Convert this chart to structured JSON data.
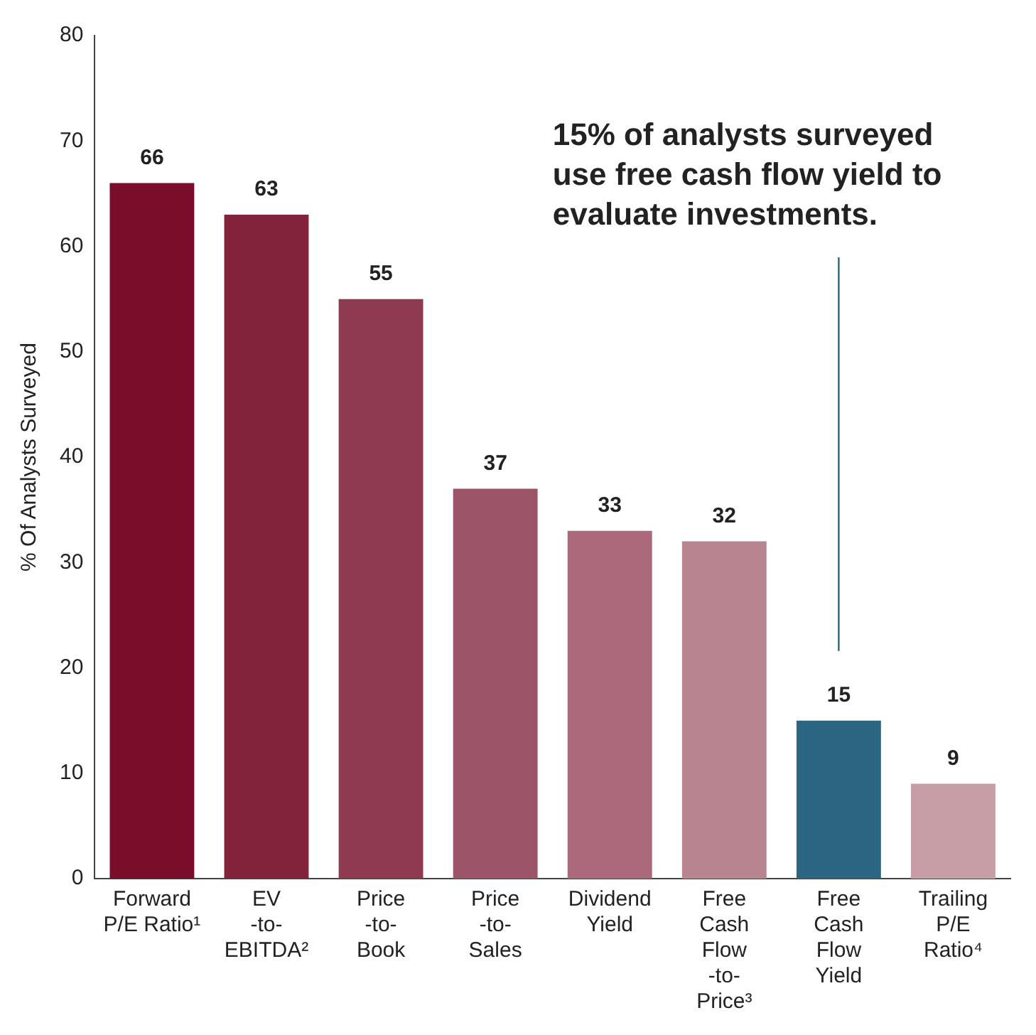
{
  "chart_data": {
    "type": "bar",
    "ylabel": "% Of Analysts Surveyed",
    "categories": [
      "Forward\nP/E Ratio¹",
      "EV\n-to-\nEBITDA²",
      "Price\n-to-\nBook",
      "Price\n-to-\nSales",
      "Dividend\nYield",
      "Free\nCash\nFlow\n-to-\nPrice³",
      "Free\nCash\nFlow\nYield",
      "Trailing\nP/E\nRatio⁴"
    ],
    "values": [
      66,
      63,
      55,
      37,
      33,
      32,
      15,
      9
    ],
    "colors": [
      "#7a0e2a",
      "#83233b",
      "#8e3a51",
      "#9c5468",
      "#ab6a7b",
      "#b8848f",
      "#2a6581",
      "#c79da6"
    ],
    "ylim": [
      0,
      80
    ],
    "yticks": [
      0,
      10,
      20,
      30,
      40,
      50,
      60,
      70,
      80
    ],
    "grid": false,
    "legend": false,
    "data_labels": true,
    "annotations": [
      "15% of analysts surveyed\nuse free cash flow yield to\nevaluate investments."
    ]
  }
}
